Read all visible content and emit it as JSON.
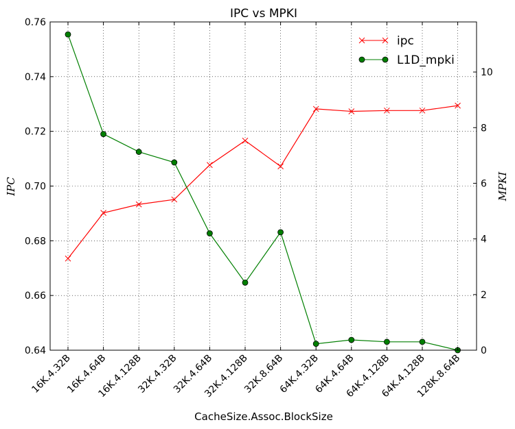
{
  "chart_data": {
    "type": "line",
    "title": "IPC vs MPKI",
    "xlabel": "CacheSize.Assoc.BlockSize",
    "ylabel_left": "IPC",
    "ylabel_right": "MPKI",
    "categories": [
      "16K.4.32B",
      "16K.4.64B",
      "16K.4.128B",
      "32K.4.32B",
      "32K.4.64B",
      "32K.4.128B",
      "32K.8.64B",
      "64K.4.32B",
      "64K.4.64B",
      "64K.4.128B",
      "64K.4.128B",
      "128K.8.64B"
    ],
    "ylim_left": [
      0.64,
      0.76
    ],
    "yticks_left": [
      "0.64",
      "0.66",
      "0.68",
      "0.70",
      "0.72",
      "0.74",
      "0.76"
    ],
    "ylim_right": [
      0,
      11.8
    ],
    "yticks_right": [
      "0",
      "2",
      "4",
      "6",
      "8",
      "10"
    ],
    "grid": true,
    "legend_position": "top-right",
    "series": [
      {
        "name": "ipc",
        "axis": "left",
        "color": "#ff0000",
        "marker": "x",
        "values": [
          0.6735,
          0.6902,
          0.6933,
          0.6951,
          0.7077,
          0.7166,
          0.7072,
          0.7282,
          0.7273,
          0.7276,
          0.7276,
          0.7294
        ]
      },
      {
        "name": "L1D_mpki",
        "axis": "right",
        "color": "#007f00",
        "marker": "o",
        "values": [
          11.35,
          7.77,
          7.13,
          6.75,
          4.2,
          2.43,
          4.24,
          0.23,
          0.37,
          0.3,
          0.3,
          0.0
        ]
      }
    ]
  }
}
